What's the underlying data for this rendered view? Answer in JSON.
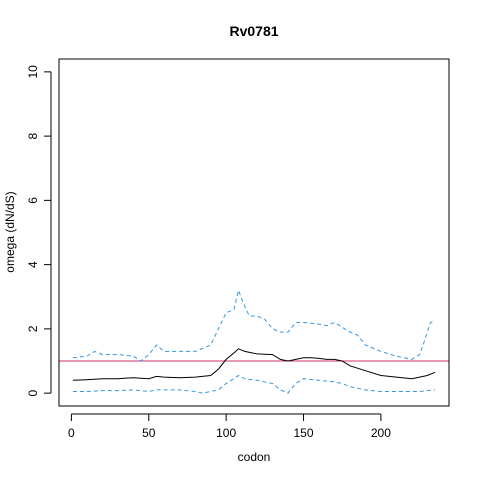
{
  "chart_data": {
    "type": "line",
    "title": "Rv0781",
    "xlabel": "codon",
    "ylabel": "omega (dN/dS)",
    "xlim": [
      -8,
      244
    ],
    "ylim": [
      -0.4,
      10.4
    ],
    "x_ticks": [
      0,
      50,
      100,
      150,
      200
    ],
    "y_ticks": [
      0,
      2,
      4,
      6,
      8,
      10
    ],
    "reference_line": {
      "y": 1,
      "color": "#cc3366"
    },
    "series": [
      {
        "role": "estimate",
        "color": "#000000",
        "style": "solid",
        "x": [
          1,
          10,
          20,
          30,
          40,
          50,
          55,
          60,
          70,
          80,
          90,
          95,
          100,
          105,
          108,
          112,
          120,
          130,
          135,
          140,
          145,
          150,
          155,
          160,
          165,
          170,
          175,
          180,
          190,
          200,
          210,
          220,
          225,
          230,
          235
        ],
        "y": [
          0.4,
          0.42,
          0.45,
          0.45,
          0.48,
          0.45,
          0.52,
          0.5,
          0.48,
          0.5,
          0.55,
          0.75,
          1.05,
          1.25,
          1.38,
          1.3,
          1.22,
          1.2,
          1.05,
          1.0,
          1.05,
          1.1,
          1.1,
          1.08,
          1.05,
          1.05,
          1.0,
          0.85,
          0.7,
          0.55,
          0.5,
          0.45,
          0.5,
          0.55,
          0.65
        ]
      },
      {
        "role": "upper bound",
        "color": "#3399dd",
        "style": "dashed",
        "x": [
          1,
          10,
          15,
          20,
          30,
          40,
          45,
          50,
          55,
          60,
          70,
          80,
          90,
          95,
          100,
          105,
          108,
          112,
          115,
          120,
          125,
          130,
          135,
          140,
          145,
          150,
          160,
          165,
          170,
          180,
          185,
          190,
          200,
          210,
          220,
          225,
          228,
          232,
          235
        ],
        "y": [
          1.1,
          1.15,
          1.3,
          1.2,
          1.2,
          1.15,
          1.0,
          1.2,
          1.5,
          1.3,
          1.3,
          1.3,
          1.5,
          2.0,
          2.5,
          2.6,
          3.2,
          2.7,
          2.4,
          2.4,
          2.3,
          2.0,
          1.9,
          1.9,
          2.2,
          2.2,
          2.15,
          2.1,
          2.2,
          1.9,
          1.8,
          1.5,
          1.3,
          1.15,
          1.05,
          1.2,
          1.6,
          2.2,
          2.25
        ]
      },
      {
        "role": "lower bound",
        "color": "#3399dd",
        "style": "dashed",
        "x": [
          1,
          10,
          20,
          30,
          40,
          50,
          55,
          60,
          70,
          80,
          85,
          90,
          95,
          100,
          105,
          108,
          112,
          120,
          130,
          135,
          140,
          145,
          150,
          160,
          170,
          175,
          180,
          190,
          200,
          210,
          220,
          225,
          230,
          235
        ],
        "y": [
          0.05,
          0.05,
          0.08,
          0.08,
          0.1,
          0.05,
          0.1,
          0.1,
          0.1,
          0.05,
          0.0,
          0.05,
          0.1,
          0.3,
          0.45,
          0.55,
          0.45,
          0.4,
          0.3,
          0.1,
          0.0,
          0.3,
          0.45,
          0.4,
          0.35,
          0.3,
          0.2,
          0.1,
          0.05,
          0.05,
          0.05,
          0.05,
          0.08,
          0.1
        ]
      }
    ]
  }
}
